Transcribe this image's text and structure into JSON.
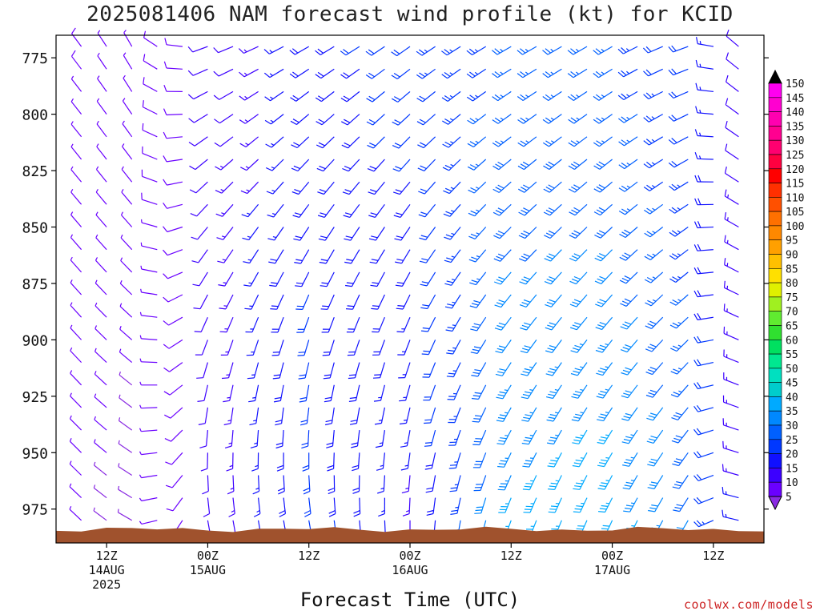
{
  "title": "2025081406 NAM forecast wind profile (kt) for KCID",
  "credit": "coolwx.com/models",
  "chart_data": {
    "type": "wind-barb-timeheight",
    "title": "2025081406 NAM forecast wind profile (kt) for KCID",
    "xlabel": "Forecast Time (UTC)",
    "ylabel": "",
    "y_ticks": [
      775,
      800,
      825,
      850,
      875,
      900,
      925,
      950,
      975
    ],
    "y_range_hPa": [
      765,
      990
    ],
    "x_ticks": [
      {
        "label": "12Z",
        "sub1": "14AUG",
        "sub2": "2025",
        "hour": 6
      },
      {
        "label": "00Z",
        "sub1": "15AUG",
        "sub2": "",
        "hour": 18
      },
      {
        "label": "12Z",
        "sub1": "",
        "sub2": "",
        "hour": 30
      },
      {
        "label": "00Z",
        "sub1": "16AUG",
        "sub2": "",
        "hour": 42
      },
      {
        "label": "12Z",
        "sub1": "",
        "sub2": "",
        "hour": 54
      },
      {
        "label": "00Z",
        "sub1": "17AUG",
        "sub2": "",
        "hour": 66
      },
      {
        "label": "12Z",
        "sub1": "",
        "sub2": "",
        "hour": 78
      }
    ],
    "x_range_hours": [
      0,
      84
    ],
    "colorbar": {
      "values": [
        5,
        10,
        15,
        20,
        25,
        30,
        35,
        40,
        45,
        50,
        55,
        60,
        65,
        70,
        75,
        80,
        85,
        90,
        95,
        100,
        105,
        110,
        115,
        120,
        125,
        130,
        135,
        140,
        145,
        150
      ],
      "colors": [
        "#8a2be2",
        "#6a00ff",
        "#3c00ff",
        "#1010ff",
        "#0038ff",
        "#0060ff",
        "#0088ff",
        "#00aaff",
        "#00cccc",
        "#00e0c0",
        "#00e890",
        "#00e060",
        "#30e030",
        "#60ec30",
        "#a0f020",
        "#e0f000",
        "#ffe000",
        "#ffc000",
        "#ffa000",
        "#ff8800",
        "#ff7000",
        "#ff5000",
        "#ff3000",
        "#ff0000",
        "#ff0040",
        "#ff0070",
        "#ff0090",
        "#ff00b0",
        "#ff00d0",
        "#ff00f0"
      ]
    },
    "terrain_color": "#a0522d",
    "terrain_top_hPa_approx": 984,
    "barb_levels_hPa": [
      770,
      780,
      790,
      800,
      810,
      820,
      830,
      840,
      850,
      860,
      870,
      880,
      890,
      900,
      910,
      920,
      930,
      940,
      950,
      960,
      970,
      980
    ],
    "time_hours": [
      0,
      3,
      6,
      9,
      12,
      15,
      18,
      21,
      24,
      27,
      30,
      33,
      36,
      39,
      42,
      45,
      48,
      51,
      54,
      57,
      60,
      63,
      66,
      69,
      72,
      75,
      78,
      81,
      84
    ],
    "wind": {
      "description": "direction (deg from) and speed (kt) at each level (rows top->bottom) and each time (columns)",
      "keyframes": [
        {
          "hour": 0,
          "dir_top": 320,
          "spd_top": 8,
          "dir_bot": 320,
          "spd_bot": 6
        },
        {
          "hour": 9,
          "dir_top": 330,
          "spd_top": 7,
          "dir_bot": 300,
          "spd_bot": 4
        },
        {
          "hour": 18,
          "dir_top": 250,
          "spd_top": 10,
          "dir_bot": 170,
          "spd_bot": 12
        },
        {
          "hour": 30,
          "dir_top": 240,
          "spd_top": 18,
          "dir_bot": 170,
          "spd_bot": 22
        },
        {
          "hour": 42,
          "dir_top": 235,
          "spd_top": 22,
          "dir_bot": 180,
          "spd_bot": 14
        },
        {
          "hour": 54,
          "dir_top": 240,
          "spd_top": 25,
          "dir_bot": 200,
          "spd_bot": 36
        },
        {
          "hour": 66,
          "dir_top": 240,
          "spd_top": 25,
          "dir_bot": 205,
          "spd_bot": 38
        },
        {
          "hour": 75,
          "dir_top": 250,
          "spd_top": 20,
          "dir_bot": 210,
          "spd_bot": 30
        },
        {
          "hour": 84,
          "dir_top": 340,
          "spd_top": 7,
          "dir_bot": 320,
          "spd_bot": 8
        }
      ]
    }
  }
}
